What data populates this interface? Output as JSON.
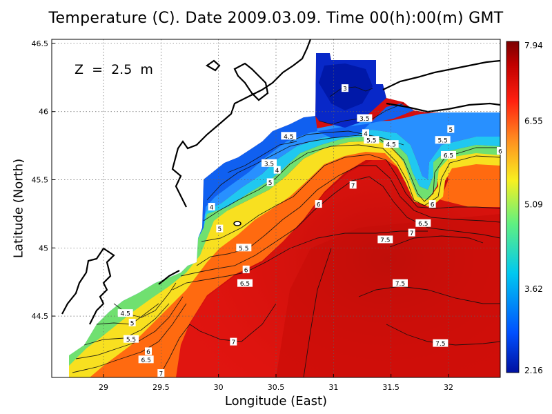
{
  "title": "Temperature (C). Date 2009.03.09. Time 00(h):00(m) GMT",
  "depth_label": "Z = 2.5 m",
  "xlabel": "Longitude (East)",
  "ylabel": "Latitude (North)",
  "chart_data": {
    "type": "heatmap",
    "title": "Temperature (C). Date 2009.03.09. Time 00(h):00(m) GMT",
    "xlabel": "Longitude (East)",
    "ylabel": "Latitude (North)",
    "xlim": [
      28.55,
      32.45
    ],
    "ylim": [
      44.05,
      46.53
    ],
    "x_ticks": [
      29,
      29.5,
      30,
      30.5,
      31,
      31.5,
      32
    ],
    "x_tick_labels": [
      "29",
      "29.5",
      "30",
      "30.5",
      "31",
      "31.5",
      "32"
    ],
    "y_ticks": [
      44.5,
      45,
      45.5,
      46,
      46.5
    ],
    "y_tick_labels": [
      "44.5",
      "45",
      "45.5",
      "46",
      "46.5"
    ],
    "grid": true,
    "colorbar": {
      "min": 2.16,
      "max": 7.94,
      "tick_values": [
        2.16,
        3.62,
        5.09,
        6.55,
        7.94
      ],
      "tick_labels": [
        "2.16",
        "3.62",
        "5.09",
        "6.55",
        "7.94"
      ],
      "colors": [
        "#0010a0",
        "#0050ff",
        "#00c8f0",
        "#60f080",
        "#f8f020",
        "#ff9020",
        "#ff2010",
        "#c00000",
        "#7a0000"
      ]
    },
    "contour_labels": [
      {
        "text": "3",
        "lon": 31.1,
        "lat": 46.17
      },
      {
        "text": "3.5",
        "lon": 31.27,
        "lat": 45.95
      },
      {
        "text": "4",
        "lon": 31.28,
        "lat": 45.84
      },
      {
        "text": "5.5",
        "lon": 31.33,
        "lat": 45.79
      },
      {
        "text": "4.5",
        "lon": 31.5,
        "lat": 45.76
      },
      {
        "text": "4.5",
        "lon": 30.61,
        "lat": 45.82
      },
      {
        "text": "3.5",
        "lon": 30.44,
        "lat": 45.62
      },
      {
        "text": "4",
        "lon": 30.51,
        "lat": 45.57
      },
      {
        "text": "5",
        "lon": 30.45,
        "lat": 45.48
      },
      {
        "text": "5",
        "lon": 32.02,
        "lat": 45.87
      },
      {
        "text": "5.5",
        "lon": 31.95,
        "lat": 45.79
      },
      {
        "text": "6.5",
        "lon": 32.0,
        "lat": 45.68
      },
      {
        "text": "6",
        "lon": 32.45,
        "lat": 45.71
      },
      {
        "text": "7",
        "lon": 31.17,
        "lat": 45.46
      },
      {
        "text": "6",
        "lon": 30.87,
        "lat": 45.32
      },
      {
        "text": "6",
        "lon": 31.86,
        "lat": 45.32
      },
      {
        "text": "6.5",
        "lon": 31.78,
        "lat": 45.18
      },
      {
        "text": "7",
        "lon": 31.68,
        "lat": 45.11
      },
      {
        "text": "7.5",
        "lon": 31.45,
        "lat": 45.06
      },
      {
        "text": "4",
        "lon": 29.94,
        "lat": 45.3
      },
      {
        "text": "5",
        "lon": 30.01,
        "lat": 45.14
      },
      {
        "text": "5.5",
        "lon": 30.22,
        "lat": 45.0
      },
      {
        "text": "6",
        "lon": 30.24,
        "lat": 44.84
      },
      {
        "text": "6.5",
        "lon": 30.23,
        "lat": 44.74
      },
      {
        "text": "7.5",
        "lon": 31.58,
        "lat": 44.74
      },
      {
        "text": "4.5",
        "lon": 29.19,
        "lat": 44.52
      },
      {
        "text": "5",
        "lon": 29.25,
        "lat": 44.45
      },
      {
        "text": "5.5",
        "lon": 29.24,
        "lat": 44.33
      },
      {
        "text": "6",
        "lon": 29.39,
        "lat": 44.24
      },
      {
        "text": "6.5",
        "lon": 29.37,
        "lat": 44.18
      },
      {
        "text": "7",
        "lon": 29.5,
        "lat": 44.08
      },
      {
        "text": "7",
        "lon": 30.13,
        "lat": 44.31
      },
      {
        "text": "7.5",
        "lon": 31.93,
        "lat": 44.3
      }
    ]
  }
}
